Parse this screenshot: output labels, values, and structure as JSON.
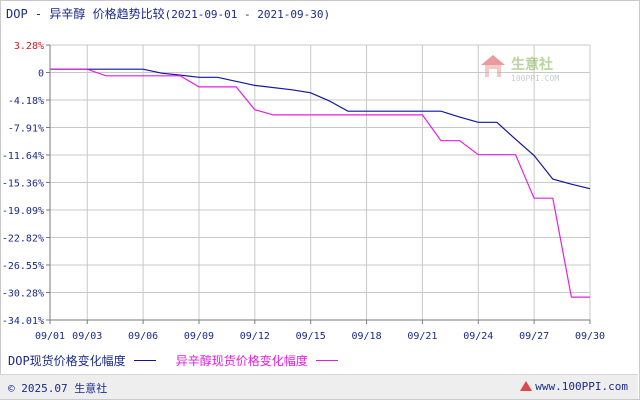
{
  "header": {
    "title": "DOP - 异辛醇 价格趋势比较",
    "range": "(2021-09-01 - 2021-09-30)"
  },
  "watermark": {
    "name": "生意社",
    "url": "100PPI.COM"
  },
  "footer": {
    "copyright": "© 2025.07 生意社",
    "site": "www.100PPI.com"
  },
  "colors": {
    "dop": "#1414a0",
    "isooctanol": "#e020e0",
    "grid": "#c8c8c8",
    "axis_text": "#1a2a8a",
    "top_tick": "#cc2020"
  },
  "chart_data": {
    "type": "line",
    "title": "DOP - 异辛醇 价格趋势比较",
    "xlabel": "",
    "ylabel": "",
    "x_ticks": [
      "09/01",
      "09/03",
      "09/06",
      "09/09",
      "09/12",
      "09/15",
      "09/18",
      "09/21",
      "09/24",
      "09/27",
      "09/30"
    ],
    "y_ticks": [
      "3.28%",
      "0",
      "-4.18%",
      "-7.91%",
      "-11.64%",
      "-15.36%",
      "-19.09%",
      "-22.82%",
      "-26.55%",
      "-30.28%",
      "-34.01%"
    ],
    "ylim": [
      -34.01,
      3.28
    ],
    "grid": true,
    "legend_position": "bottom-left",
    "series": [
      {
        "name": "DOP现货价格变化幅度",
        "color": "#1414a0",
        "points": [
          [
            "09/01",
            0
          ],
          [
            "09/02",
            0
          ],
          [
            "09/03",
            0
          ],
          [
            "09/06",
            0
          ],
          [
            "09/07",
            -0.55
          ],
          [
            "09/08",
            -0.8
          ],
          [
            "09/09",
            -1.1
          ],
          [
            "09/10",
            -1.1
          ],
          [
            "09/12",
            -2.2
          ],
          [
            "09/14",
            -2.8
          ],
          [
            "09/15",
            -3.2
          ],
          [
            "09/16",
            -4.3
          ],
          [
            "09/17",
            -5.7
          ],
          [
            "09/20",
            -5.7
          ],
          [
            "09/21",
            -5.7
          ],
          [
            "09/22",
            -5.7
          ],
          [
            "09/23",
            -6.5
          ],
          [
            "09/24",
            -7.2
          ],
          [
            "09/25",
            -7.2
          ],
          [
            "09/26",
            -9.5
          ],
          [
            "09/27",
            -11.7
          ],
          [
            "09/28",
            -14.9
          ],
          [
            "09/29",
            -15.6
          ],
          [
            "09/30",
            -16.2
          ]
        ]
      },
      {
        "name": "异辛醇现货价格变化幅度",
        "color": "#e020e0",
        "points": [
          [
            "09/01",
            0
          ],
          [
            "09/02",
            0
          ],
          [
            "09/03",
            0
          ],
          [
            "09/04",
            -0.9
          ],
          [
            "09/06",
            -0.9
          ],
          [
            "09/08",
            -0.9
          ],
          [
            "09/09",
            -2.4
          ],
          [
            "09/10",
            -2.4
          ],
          [
            "09/11",
            -2.4
          ],
          [
            "09/12",
            -5.5
          ],
          [
            "09/13",
            -6.2
          ],
          [
            "09/15",
            -6.2
          ],
          [
            "09/18",
            -6.2
          ],
          [
            "09/20",
            -6.2
          ],
          [
            "09/21",
            -6.2
          ],
          [
            "09/22",
            -9.7
          ],
          [
            "09/23",
            -9.7
          ],
          [
            "09/24",
            -11.6
          ],
          [
            "09/25",
            -11.6
          ],
          [
            "09/26",
            -11.6
          ],
          [
            "09/27",
            -17.5
          ],
          [
            "09/28",
            -17.5
          ],
          [
            "09/29",
            -30.9
          ],
          [
            "09/30",
            -30.9
          ]
        ]
      }
    ]
  }
}
